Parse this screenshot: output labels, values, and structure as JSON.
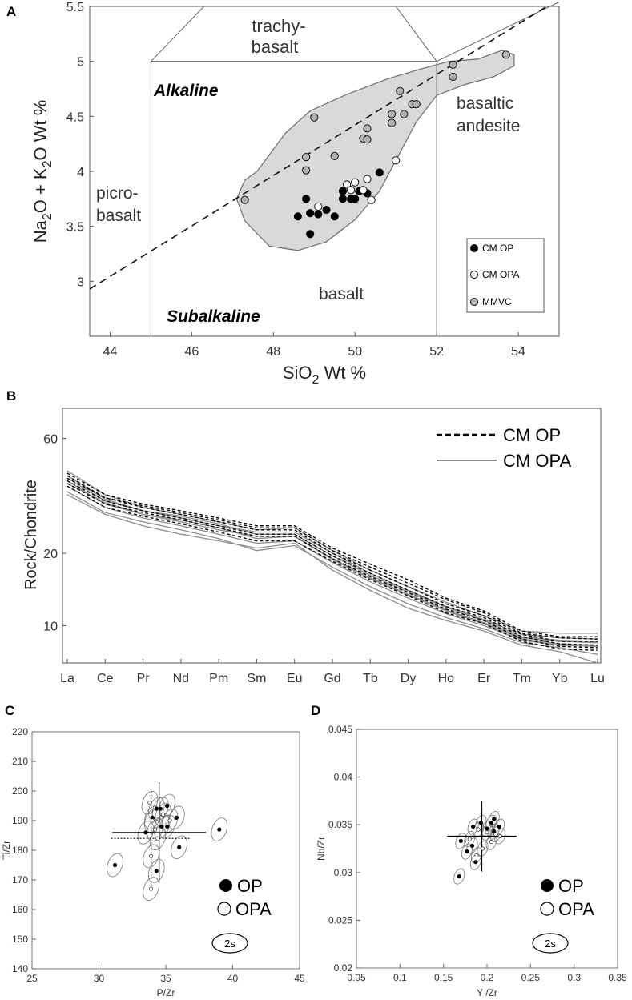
{
  "panels": {
    "A": "A",
    "B": "B",
    "C": "C",
    "D": "D"
  },
  "colors": {
    "field_fill": "#d9d9d9",
    "axis": "#555555",
    "op": "#000000",
    "opa": "#ffffff",
    "mmvc": "#b3b3b3",
    "grey_line": "#8c8c8c"
  },
  "chart_data": [
    {
      "id": "A",
      "type": "scatter",
      "xlabel_main": "SiO",
      "xlabel_sub": "2",
      "xlabel_tail": " Wt %",
      "ylabel_p1": "Na",
      "ylabel_s1": "2",
      "ylabel_p2": "O + K",
      "ylabel_s2": "2",
      "ylabel_p3": "O Wt %",
      "xlim": [
        43.5,
        55
      ],
      "ylim": [
        2.5,
        5.5
      ],
      "xticks": [
        44,
        46,
        48,
        50,
        52,
        54
      ],
      "yticks": [
        3,
        3.5,
        4,
        4.5,
        5,
        5.5
      ],
      "field_labels": {
        "trachy1": "trachy-",
        "trachy2": "basalt",
        "alkaline": "Alkaline",
        "picro1": "picro-",
        "picro2": "basalt",
        "basaltic1": "basaltic",
        "basaltic2": "andesite",
        "basalt": "basalt",
        "subalkaline": "Subalkaline"
      },
      "legend": [
        {
          "label": "CM OP",
          "color": "#000000"
        },
        {
          "label": "CM OPA",
          "color": "#ffffff"
        },
        {
          "label": "MMVC",
          "color": "#b3b3b3"
        }
      ],
      "alkaline_line": [
        [
          43.5,
          2.93
        ],
        [
          54.7,
          5.5
        ]
      ],
      "series": [
        {
          "name": "CM OP",
          "color": "#000000",
          "points": [
            [
              48.6,
              3.59
            ],
            [
              48.8,
              3.75
            ],
            [
              48.9,
              3.62
            ],
            [
              48.9,
              3.43
            ],
            [
              49.1,
              3.61
            ],
            [
              49.3,
              3.65
            ],
            [
              49.5,
              3.59
            ],
            [
              49.7,
              3.75
            ],
            [
              49.7,
              3.82
            ],
            [
              49.9,
              3.75
            ],
            [
              50.0,
              3.75
            ],
            [
              50.1,
              3.82
            ],
            [
              50.3,
              3.8
            ],
            [
              50.6,
              3.99
            ]
          ]
        },
        {
          "name": "CM OPA",
          "color": "#ffffff",
          "points": [
            [
              49.1,
              3.68
            ],
            [
              49.8,
              3.88
            ],
            [
              49.9,
              3.83
            ],
            [
              50.0,
              3.9
            ],
            [
              50.2,
              3.83
            ],
            [
              50.3,
              3.93
            ],
            [
              50.4,
              3.74
            ],
            [
              51.0,
              4.1
            ]
          ]
        },
        {
          "name": "MMVC",
          "color": "#b3b3b3",
          "points": [
            [
              47.3,
              3.74
            ],
            [
              48.8,
              4.13
            ],
            [
              48.8,
              4.01
            ],
            [
              49.0,
              4.49
            ],
            [
              49.5,
              4.14
            ],
            [
              50.2,
              4.3
            ],
            [
              50.3,
              4.39
            ],
            [
              50.3,
              4.29
            ],
            [
              50.9,
              4.52
            ],
            [
              50.9,
              4.44
            ],
            [
              51.1,
              4.73
            ],
            [
              51.2,
              4.52
            ],
            [
              51.4,
              4.61
            ],
            [
              51.5,
              4.61
            ],
            [
              52.4,
              4.97
            ],
            [
              52.4,
              4.86
            ],
            [
              53.7,
              5.06
            ]
          ]
        }
      ]
    },
    {
      "id": "B",
      "type": "line",
      "ylabel": "Rock/Chondrite",
      "yscale": "log",
      "ylim": [
        7,
        80
      ],
      "yticks": [
        10,
        20,
        60
      ],
      "categories": [
        "La",
        "Ce",
        "Pr",
        "Nd",
        "Pm",
        "Sm",
        "Eu",
        "Gd",
        "Tb",
        "Dy",
        "Ho",
        "Er",
        "Tm",
        "Yb",
        "Lu"
      ],
      "legend": [
        {
          "label": "CM OP",
          "style": "dashed black"
        },
        {
          "label": "CM OPA",
          "style": "solid grey"
        }
      ],
      "series": [
        {
          "name": "CM OP",
          "values": [
            43,
            35,
            32,
            30,
            28,
            26,
            26,
            21,
            18,
            15.5,
            13,
            11.5,
            9.5,
            9,
            9
          ]
        },
        {
          "name": "CM OP",
          "values": [
            41,
            34,
            31,
            29,
            27,
            25,
            25,
            20,
            17,
            14.5,
            12.3,
            11,
            9.2,
            8.6,
            8.6
          ]
        },
        {
          "name": "CM OP",
          "values": [
            40,
            33,
            30,
            28,
            26,
            24,
            24,
            19.5,
            16.5,
            14,
            12,
            10.8,
            9,
            8.4,
            8.3
          ]
        },
        {
          "name": "CM OP",
          "values": [
            39,
            32,
            29.5,
            27.5,
            25.5,
            23.5,
            23.5,
            19,
            16,
            13.7,
            11.7,
            10.5,
            8.8,
            8.2,
            8.1
          ]
        },
        {
          "name": "CM OP",
          "values": [
            42,
            34,
            31.5,
            29.5,
            27.5,
            25.5,
            25.5,
            20.5,
            17.5,
            15,
            12.8,
            11.3,
            9.3,
            8.9,
            8.8
          ]
        },
        {
          "name": "CM OP",
          "values": [
            38,
            31,
            28.5,
            26.5,
            24.5,
            22.5,
            22.5,
            18.5,
            15.5,
            13.3,
            11.3,
            10.2,
            8.6,
            8.0,
            7.9
          ]
        },
        {
          "name": "CM OPA",
          "values": [
            44,
            35,
            31,
            29,
            27,
            25,
            25.5,
            20.5,
            17,
            14.5,
            12.5,
            11,
            9.5,
            9.3,
            9.3
          ]
        },
        {
          "name": "CM OPA",
          "values": [
            42,
            33.5,
            30,
            28,
            26,
            24.5,
            24.5,
            20,
            16.5,
            14,
            12,
            10.6,
            9.2,
            8.9,
            8.8
          ]
        },
        {
          "name": "CM OPA",
          "values": [
            40,
            32,
            29,
            27,
            25,
            23.5,
            23.5,
            19,
            15.8,
            13.5,
            11.6,
            10.3,
            8.9,
            8.6,
            8.5
          ]
        },
        {
          "name": "CM OPA",
          "values": [
            38,
            31,
            28,
            26,
            24,
            22,
            22.5,
            18.3,
            15.2,
            13,
            11.2,
            10,
            8.7,
            8.3,
            8.2
          ]
        },
        {
          "name": "CM OPA",
          "values": [
            36,
            29.5,
            27,
            25,
            23,
            20.5,
            21.5,
            17.5,
            14.5,
            12.3,
            10.8,
            9.7,
            8.5,
            8.1,
            7.6
          ]
        },
        {
          "name": "CM OPA",
          "values": [
            35,
            29,
            26,
            24,
            22.5,
            21,
            22,
            17,
            14,
            11.8,
            10.5,
            9.5,
            8.3,
            7.8,
            7.0
          ]
        },
        {
          "name": "CM OPA",
          "values": [
            41,
            33,
            30,
            28.5,
            26.5,
            24,
            24,
            19.5,
            16.2,
            13.8,
            11.9,
            10.5,
            9,
            8.7,
            8.6
          ]
        },
        {
          "name": "CM OPA",
          "values": [
            39,
            32.5,
            29,
            27.5,
            25.5,
            23,
            23.5,
            18.8,
            15.7,
            13.4,
            11.5,
            10.2,
            8.8,
            8.4,
            8.3
          ]
        }
      ]
    },
    {
      "id": "C",
      "type": "scatter",
      "xlabel": "P/Zr",
      "ylabel": "Ti/Zr",
      "xlim": [
        25,
        45
      ],
      "ylim": [
        140,
        220
      ],
      "xticks": [
        25,
        30,
        35,
        40,
        45
      ],
      "yticks": [
        140,
        150,
        160,
        170,
        180,
        190,
        200,
        210,
        220
      ],
      "legend_op": "OP",
      "legend_opa": "OPA",
      "error_label": "2s",
      "mean_op": {
        "x": 34.5,
        "y": 186,
        "xerr": 3.5,
        "yerr": 17
      },
      "mean_opa": {
        "x": 33.9,
        "y": 184,
        "xerr": 3,
        "yerr": 16
      },
      "op_points": [
        [
          31.2,
          175
        ],
        [
          33.5,
          186
        ],
        [
          34.0,
          191
        ],
        [
          34.3,
          194
        ],
        [
          34.6,
          194
        ],
        [
          35.1,
          195
        ],
        [
          34.7,
          188
        ],
        [
          35.8,
          191
        ],
        [
          35.1,
          188
        ],
        [
          36.0,
          181
        ],
        [
          34.3,
          173
        ],
        [
          39.0,
          187
        ]
      ],
      "opa_points": [
        [
          33.8,
          196
        ],
        [
          34.0,
          190
        ],
        [
          34.2,
          187
        ],
        [
          34.4,
          184
        ],
        [
          33.9,
          178
        ],
        [
          33.9,
          167
        ],
        [
          34.8,
          192
        ],
        [
          35.3,
          190
        ]
      ]
    },
    {
      "id": "D",
      "type": "scatter",
      "xlabel": "Y /Zr",
      "ylabel": "Nb/Zr",
      "xlim": [
        0.05,
        0.35
      ],
      "ylim": [
        0.02,
        0.045
      ],
      "xticks": [
        0.05,
        0.1,
        0.15,
        0.2,
        0.25,
        0.3,
        0.35
      ],
      "yticks": [
        0.02,
        0.025,
        0.03,
        0.035,
        0.04,
        0.045
      ],
      "legend_op": "OP",
      "legend_opa": "OPA",
      "error_label": "2s",
      "mean_op": {
        "x": 0.194,
        "y": 0.0338,
        "xerr": 0.04,
        "yerr": 0.0037
      },
      "mean_opa": {
        "x": 0.194,
        "y": 0.0338,
        "xerr": 0.03,
        "yerr": 0.003
      },
      "op_points": [
        [
          0.168,
          0.0296
        ],
        [
          0.17,
          0.0333
        ],
        [
          0.177,
          0.0322
        ],
        [
          0.183,
          0.0328
        ],
        [
          0.184,
          0.0348
        ],
        [
          0.187,
          0.0311
        ],
        [
          0.193,
          0.0352
        ],
        [
          0.2,
          0.0346
        ],
        [
          0.205,
          0.0352
        ],
        [
          0.208,
          0.0356
        ],
        [
          0.208,
          0.0343
        ],
        [
          0.214,
          0.0348
        ]
      ],
      "opa_points": [
        [
          0.18,
          0.0335
        ],
        [
          0.19,
          0.0345
        ],
        [
          0.195,
          0.0325
        ],
        [
          0.2,
          0.0342
        ],
        [
          0.21,
          0.034
        ],
        [
          0.215,
          0.0338
        ],
        [
          0.205,
          0.0332
        ],
        [
          0.188,
          0.0318
        ]
      ]
    }
  ]
}
